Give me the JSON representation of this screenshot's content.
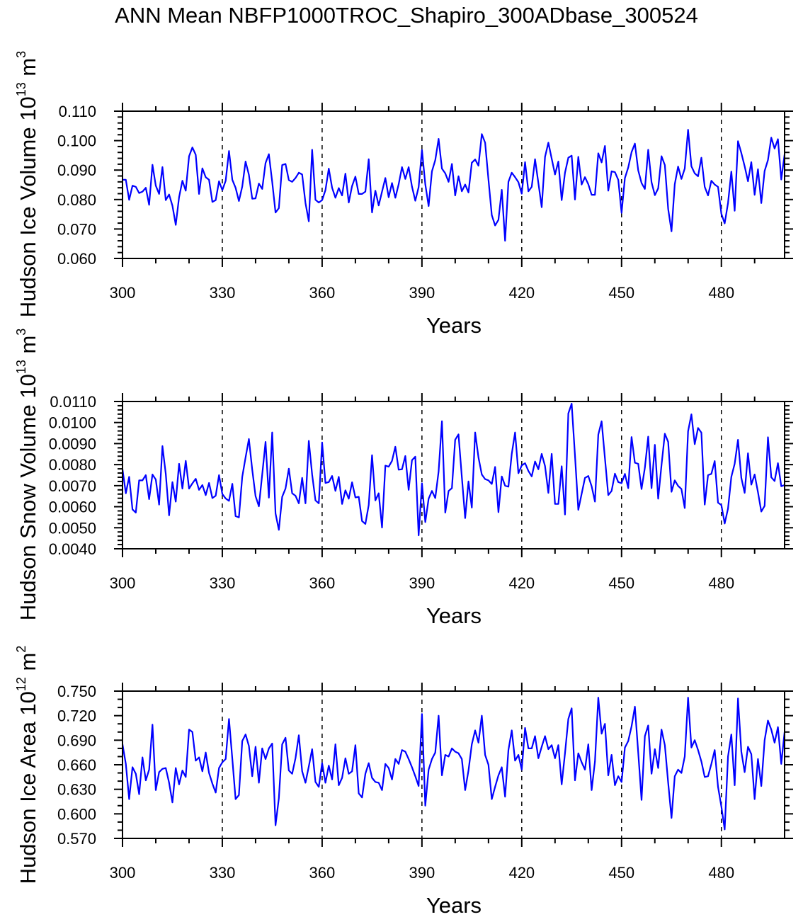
{
  "title": "ANN Mean NBFP1000TROC_Shapiro_300ADbase_300524",
  "colors": {
    "series": "#0000ff",
    "axis": "#000000",
    "refline": "#000000"
  },
  "chart_data": [
    {
      "type": "line",
      "ylabel": {
        "text": "Hudson Ice Volume 10",
        "exp": "13",
        "unit": " m",
        "unit_exp": "3"
      },
      "xlabel": "Years",
      "xlim": [
        300,
        499
      ],
      "xticks": [
        300,
        330,
        360,
        390,
        420,
        450,
        480
      ],
      "xtick_labels": [
        "300",
        "330",
        "360",
        "390",
        "420",
        "450",
        "480"
      ],
      "xminor_step": 10,
      "ylim": [
        0.06,
        0.11
      ],
      "yticks": [
        0.06,
        0.07,
        0.08,
        0.09,
        0.1,
        0.11
      ],
      "ytick_labels": [
        "0.060",
        "0.070",
        "0.080",
        "0.090",
        "0.100",
        "0.110"
      ],
      "yminor_step": 0.002,
      "reference_lines_x": [
        330,
        360,
        390,
        420,
        450,
        480
      ],
      "x_start": 300,
      "x_step": 1,
      "values": [
        0.0867,
        0.0867,
        0.0799,
        0.0847,
        0.0843,
        0.0822,
        0.0827,
        0.084,
        0.0782,
        0.0918,
        0.0847,
        0.0819,
        0.091,
        0.0798,
        0.0817,
        0.0779,
        0.0714,
        0.0808,
        0.0864,
        0.083,
        0.0947,
        0.0977,
        0.0952,
        0.0819,
        0.0906,
        0.0876,
        0.0867,
        0.0792,
        0.0798,
        0.0862,
        0.0832,
        0.0864,
        0.0965,
        0.0867,
        0.084,
        0.0795,
        0.0844,
        0.0929,
        0.0884,
        0.0803,
        0.0804,
        0.0854,
        0.0836,
        0.0924,
        0.0954,
        0.086,
        0.0756,
        0.0771,
        0.0917,
        0.0921,
        0.0866,
        0.086,
        0.0873,
        0.0891,
        0.0885,
        0.0788,
        0.0726,
        0.0969,
        0.0799,
        0.079,
        0.0798,
        0.0832,
        0.0905,
        0.084,
        0.0806,
        0.0839,
        0.0814,
        0.0888,
        0.079,
        0.0846,
        0.0878,
        0.0819,
        0.0819,
        0.0827,
        0.0937,
        0.0756,
        0.083,
        0.078,
        0.0827,
        0.0873,
        0.0808,
        0.0856,
        0.0806,
        0.0852,
        0.091,
        0.087,
        0.091,
        0.0844,
        0.0796,
        0.0842,
        0.0968,
        0.0852,
        0.0778,
        0.0896,
        0.0934,
        0.1006,
        0.0905,
        0.0889,
        0.086,
        0.0921,
        0.0814,
        0.0879,
        0.0828,
        0.0851,
        0.0824,
        0.0925,
        0.0936,
        0.0915,
        0.1022,
        0.0993,
        0.0868,
        0.0747,
        0.0712,
        0.0731,
        0.0833,
        0.066,
        0.086,
        0.0891,
        0.0876,
        0.0859,
        0.082,
        0.0927,
        0.0828,
        0.0843,
        0.0937,
        0.0856,
        0.0774,
        0.0945,
        0.0993,
        0.0939,
        0.0885,
        0.0929,
        0.0798,
        0.0891,
        0.0942,
        0.0949,
        0.08,
        0.0945,
        0.0851,
        0.0876,
        0.0852,
        0.0816,
        0.0816,
        0.0957,
        0.0926,
        0.0982,
        0.083,
        0.0896,
        0.0893,
        0.0867,
        0.0755,
        0.0873,
        0.0909,
        0.0961,
        0.099,
        0.0899,
        0.0856,
        0.0836,
        0.0969,
        0.0859,
        0.0815,
        0.0838,
        0.0947,
        0.0917,
        0.0768,
        0.0692,
        0.0852,
        0.0912,
        0.087,
        0.0905,
        0.1037,
        0.0913,
        0.0889,
        0.0879,
        0.0942,
        0.0843,
        0.0814,
        0.0864,
        0.0851,
        0.0843,
        0.0752,
        0.0719,
        0.0788,
        0.0895,
        0.0762,
        0.0998,
        0.0958,
        0.0913,
        0.0862,
        0.0927,
        0.0816,
        0.0903,
        0.0788,
        0.0897,
        0.0934,
        0.101,
        0.0973,
        0.1005,
        0.0868,
        0.0953
      ]
    },
    {
      "type": "line",
      "ylabel": {
        "text": "Hudson Snow Volume 10",
        "exp": "13",
        "unit": " m",
        "unit_exp": "3"
      },
      "xlabel": "Years",
      "xlim": [
        300,
        499
      ],
      "xticks": [
        300,
        330,
        360,
        390,
        420,
        450,
        480
      ],
      "xtick_labels": [
        "300",
        "330",
        "360",
        "390",
        "420",
        "450",
        "480"
      ],
      "xminor_step": 10,
      "ylim": [
        0.004,
        0.011
      ],
      "yticks": [
        0.004,
        0.005,
        0.006,
        0.007,
        0.008,
        0.009,
        0.01,
        0.011
      ],
      "ytick_labels": [
        "0.0040",
        "0.0050",
        "0.0060",
        "0.0070",
        "0.0080",
        "0.0090",
        "0.0100",
        "0.0110"
      ],
      "yminor_step": 0.0002,
      "reference_lines_x": [
        330,
        360,
        390,
        420,
        450,
        480
      ],
      "x_start": 300,
      "x_step": 1,
      "values": [
        0.00778,
        0.00664,
        0.00742,
        0.00587,
        0.00572,
        0.00725,
        0.00725,
        0.0075,
        0.00636,
        0.00753,
        0.00729,
        0.0061,
        0.00888,
        0.00756,
        0.00559,
        0.00717,
        0.00624,
        0.00804,
        0.00686,
        0.00818,
        0.00686,
        0.00711,
        0.00733,
        0.0068,
        0.00703,
        0.00655,
        0.00713,
        0.00641,
        0.00652,
        0.0075,
        0.0066,
        0.00639,
        0.00628,
        0.00709,
        0.00555,
        0.00549,
        0.00742,
        0.00834,
        0.00922,
        0.00776,
        0.0065,
        0.00602,
        0.00753,
        0.00908,
        0.00643,
        0.00953,
        0.00568,
        0.0049,
        0.00647,
        0.00686,
        0.00781,
        0.00664,
        0.00652,
        0.00616,
        0.00737,
        0.00616,
        0.00913,
        0.00753,
        0.0063,
        0.00616,
        0.00905,
        0.00713,
        0.00717,
        0.00746,
        0.00675,
        0.00742,
        0.00613,
        0.00678,
        0.00638,
        0.00716,
        0.00644,
        0.00647,
        0.00532,
        0.00518,
        0.00608,
        0.00845,
        0.0063,
        0.00664,
        0.00501,
        0.00795,
        0.0079,
        0.00818,
        0.00885,
        0.00776,
        0.00778,
        0.00841,
        0.0068,
        0.00821,
        0.00838,
        0.00464,
        0.00711,
        0.00527,
        0.00638,
        0.00675,
        0.00641,
        0.00767,
        0.01006,
        0.00572,
        0.00675,
        0.00688,
        0.00918,
        0.00944,
        0.00742,
        0.00546,
        0.0072,
        0.00596,
        0.00953,
        0.00834,
        0.00753,
        0.00731,
        0.00725,
        0.00708,
        0.00789,
        0.00574,
        0.00744,
        0.007,
        0.00695,
        0.00851,
        0.00953,
        0.00759,
        0.00796,
        0.00807,
        0.0077,
        0.00744,
        0.00815,
        0.00778,
        0.00851,
        0.00793,
        0.00666,
        0.00851,
        0.00613,
        0.00613,
        0.00792,
        0.00563,
        0.01043,
        0.0109,
        0.00843,
        0.00585,
        0.00661,
        0.00737,
        0.00746,
        0.00697,
        0.00624,
        0.00942,
        0.01006,
        0.0083,
        0.00655,
        0.00675,
        0.00757,
        0.00717,
        0.00712,
        0.00756,
        0.00688,
        0.00931,
        0.00809,
        0.00804,
        0.00684,
        0.00785,
        0.00933,
        0.00688,
        0.00894,
        0.00638,
        0.00798,
        0.00947,
        0.00908,
        0.00671,
        0.00725,
        0.00699,
        0.00684,
        0.00594,
        0.00958,
        0.01039,
        0.00897,
        0.00974,
        0.00952,
        0.0061,
        0.0075,
        0.00756,
        0.00817,
        0.00619,
        0.00608,
        0.0052,
        0.00591,
        0.00742,
        0.00804,
        0.00918,
        0.00737,
        0.00666,
        0.00854,
        0.00705,
        0.00753,
        0.00669,
        0.00577,
        0.00604,
        0.0093,
        0.0074,
        0.00722,
        0.00807,
        0.00697,
        0.00703
      ]
    },
    {
      "type": "line",
      "ylabel": {
        "text": "Hudson Ice Area 10",
        "exp": "12",
        "unit": " m",
        "unit_exp": "2"
      },
      "xlabel": "Years",
      "xlim": [
        300,
        499
      ],
      "xticks": [
        300,
        330,
        360,
        390,
        420,
        450,
        480
      ],
      "xtick_labels": [
        "300",
        "330",
        "360",
        "390",
        "420",
        "450",
        "480"
      ],
      "xminor_step": 10,
      "ylim": [
        0.57,
        0.75
      ],
      "yticks": [
        0.57,
        0.6,
        0.63,
        0.66,
        0.69,
        0.72,
        0.75
      ],
      "ytick_labels": [
        "0.570",
        "0.600",
        "0.630",
        "0.660",
        "0.690",
        "0.720",
        "0.750"
      ],
      "yminor_step": 0.01,
      "reference_lines_x": [
        330,
        360,
        390,
        420,
        450,
        480
      ],
      "x_start": 300,
      "x_step": 1,
      "values": [
        0.685,
        0.661,
        0.618,
        0.657,
        0.649,
        0.624,
        0.669,
        0.641,
        0.654,
        0.709,
        0.629,
        0.651,
        0.655,
        0.656,
        0.638,
        0.614,
        0.656,
        0.636,
        0.653,
        0.645,
        0.703,
        0.7,
        0.665,
        0.669,
        0.652,
        0.675,
        0.65,
        0.637,
        0.626,
        0.656,
        0.663,
        0.667,
        0.716,
        0.667,
        0.618,
        0.623,
        0.689,
        0.697,
        0.683,
        0.646,
        0.682,
        0.638,
        0.68,
        0.667,
        0.68,
        0.686,
        0.586,
        0.619,
        0.685,
        0.693,
        0.653,
        0.649,
        0.668,
        0.696,
        0.652,
        0.638,
        0.658,
        0.679,
        0.639,
        0.633,
        0.662,
        0.638,
        0.659,
        0.642,
        0.685,
        0.635,
        0.644,
        0.668,
        0.649,
        0.652,
        0.684,
        0.625,
        0.62,
        0.649,
        0.662,
        0.644,
        0.639,
        0.638,
        0.629,
        0.661,
        0.656,
        0.642,
        0.667,
        0.661,
        0.678,
        0.676,
        0.667,
        0.657,
        0.646,
        0.634,
        0.722,
        0.61,
        0.654,
        0.667,
        0.675,
        0.72,
        0.647,
        0.672,
        0.67,
        0.68,
        0.676,
        0.674,
        0.667,
        0.629,
        0.653,
        0.685,
        0.702,
        0.687,
        0.72,
        0.672,
        0.66,
        0.618,
        0.633,
        0.647,
        0.657,
        0.621,
        0.678,
        0.702,
        0.665,
        0.672,
        0.654,
        0.705,
        0.68,
        0.68,
        0.695,
        0.668,
        0.682,
        0.695,
        0.679,
        0.684,
        0.668,
        0.684,
        0.636,
        0.674,
        0.716,
        0.729,
        0.641,
        0.674,
        0.663,
        0.654,
        0.685,
        0.629,
        0.664,
        0.742,
        0.698,
        0.71,
        0.647,
        0.672,
        0.635,
        0.646,
        0.639,
        0.681,
        0.689,
        0.707,
        0.731,
        0.675,
        0.617,
        0.695,
        0.708,
        0.649,
        0.679,
        0.656,
        0.703,
        0.684,
        0.638,
        0.595,
        0.646,
        0.654,
        0.65,
        0.67,
        0.742,
        0.681,
        0.69,
        0.678,
        0.664,
        0.645,
        0.646,
        0.661,
        0.678,
        0.633,
        0.609,
        0.581,
        0.67,
        0.697,
        0.635,
        0.741,
        0.676,
        0.651,
        0.682,
        0.673,
        0.618,
        0.667,
        0.634,
        0.69,
        0.714,
        0.703,
        0.687,
        0.706,
        0.661,
        0.7
      ]
    }
  ]
}
